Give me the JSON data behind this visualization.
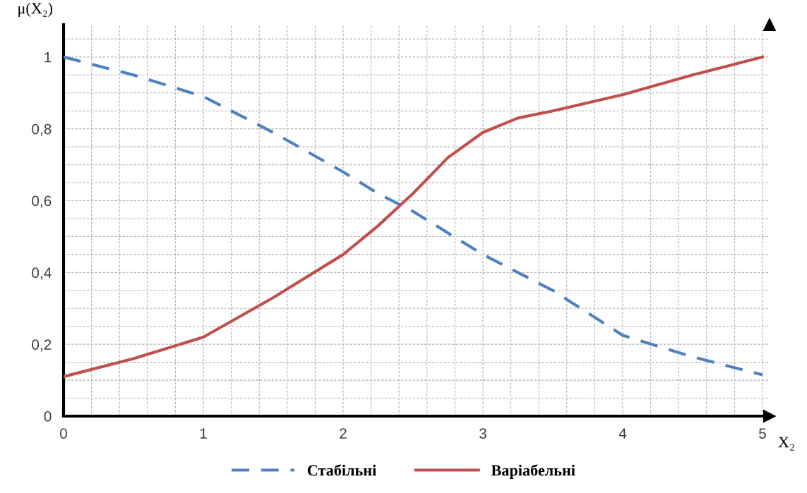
{
  "chart_data": {
    "type": "line",
    "xlabel": "X₂",
    "ylabel": "μ(X₂)",
    "x": [
      0,
      0.5,
      1,
      1.5,
      2,
      2.25,
      2.5,
      2.75,
      3,
      3.25,
      3.5,
      4,
      4.5,
      5
    ],
    "series": [
      {
        "name": "Стабільні",
        "color": "#4f81bd",
        "line_style": "dashed",
        "values": [
          1.0,
          0.95,
          0.89,
          0.79,
          0.68,
          0.62,
          0.57,
          0.51,
          0.45,
          0.4,
          0.35,
          0.225,
          0.165,
          0.115
        ]
      },
      {
        "name": "Варіабельні",
        "color": "#c0504d",
        "line_style": "solid",
        "values": [
          0.11,
          0.16,
          0.22,
          0.33,
          0.45,
          0.53,
          0.62,
          0.72,
          0.79,
          0.83,
          0.85,
          0.895,
          0.95,
          1.0
        ]
      }
    ],
    "xlim": [
      0,
      5.05
    ],
    "ylim": [
      0,
      1.09
    ],
    "xticks": [
      0,
      {
        "value": 0.2,
        "label": null
      },
      {
        "value": 0.4,
        "label": null
      },
      {
        "value": 0.6,
        "label": null
      },
      {
        "value": 0.8,
        "label": null
      },
      1,
      {
        "value": 1.2,
        "label": null
      },
      {
        "value": 1.4,
        "label": null
      },
      {
        "value": 1.6,
        "label": null
      },
      {
        "value": 1.8,
        "label": null
      },
      2,
      {
        "value": 2.2,
        "label": null
      },
      {
        "value": 2.4,
        "label": null
      },
      {
        "value": 2.6,
        "label": null
      },
      {
        "value": 2.8,
        "label": null
      },
      3,
      {
        "value": 3.2,
        "label": null
      },
      {
        "value": 3.4,
        "label": null
      },
      {
        "value": 3.6,
        "label": null
      },
      {
        "value": 3.8,
        "label": null
      },
      4,
      {
        "value": 4.2,
        "label": null
      },
      {
        "value": 4.4,
        "label": null
      },
      {
        "value": 4.6,
        "label": null
      },
      {
        "value": 4.8,
        "label": null
      },
      5
    ],
    "yticks": [
      0,
      {
        "value": 0.05,
        "label": null
      },
      {
        "value": 0.1,
        "label": null
      },
      {
        "value": 0.15,
        "label": null
      },
      {
        "value": 0.2,
        "label": "0,2"
      },
      {
        "value": 0.25,
        "label": null
      },
      {
        "value": 0.3,
        "label": null
      },
      {
        "value": 0.35,
        "label": null
      },
      {
        "value": 0.4,
        "label": "0,4"
      },
      {
        "value": 0.45,
        "label": null
      },
      {
        "value": 0.5,
        "label": null
      },
      {
        "value": 0.55,
        "label": null
      },
      {
        "value": 0.6,
        "label": "0,6"
      },
      {
        "value": 0.65,
        "label": null
      },
      {
        "value": 0.7,
        "label": null
      },
      {
        "value": 0.75,
        "label": null
      },
      {
        "value": 0.8,
        "label": "0,8"
      },
      {
        "value": 0.85,
        "label": null
      },
      {
        "value": 0.9,
        "label": null
      },
      {
        "value": 0.95,
        "label": null
      },
      1,
      {
        "value": 1.05,
        "label": null
      }
    ],
    "grid": true,
    "legend": "bottom",
    "marker": "none"
  }
}
